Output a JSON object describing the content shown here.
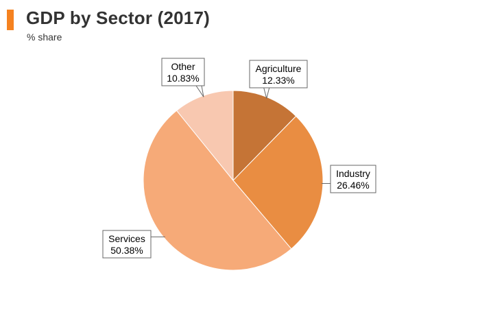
{
  "header": {
    "title": "GDP by Sector (2017)",
    "subtitle": "% share"
  },
  "chart_data": {
    "type": "pie",
    "title": "GDP by Sector (2017)",
    "subtitle": "% share",
    "legend": "none",
    "slices": [
      {
        "label": "Agriculture",
        "value": 12.33,
        "value_label": "12.33%",
        "color": "#c57436"
      },
      {
        "label": "Industry",
        "value": 26.46,
        "value_label": "26.46%",
        "color": "#e98d42"
      },
      {
        "label": "Services",
        "value": 50.38,
        "value_label": "50.38%",
        "color": "#f6aa78"
      },
      {
        "label": "Other",
        "value": 10.83,
        "value_label": "10.83%",
        "color": "#f8c8b0"
      }
    ]
  }
}
